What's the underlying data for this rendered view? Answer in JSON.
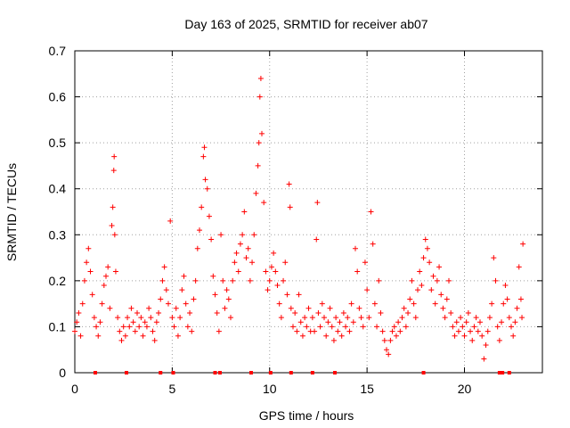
{
  "chart_data": {
    "type": "scatter",
    "title": "Day 163 of 2025, SRMTID for receiver ab07",
    "xlabel": "GPS time / hours",
    "ylabel": "SRMTID / TECUs",
    "xlim": [
      0,
      24
    ],
    "ylim": [
      0,
      0.7
    ],
    "x_ticks": [
      0,
      5,
      10,
      15,
      20
    ],
    "y_ticks": [
      0,
      0.1,
      0.2,
      0.3,
      0.4,
      0.5,
      0.6,
      0.7
    ],
    "x_tick_labels": [
      "0",
      "5",
      "10",
      "15",
      "20"
    ],
    "y_tick_labels": [
      "0",
      "0.1",
      "0.2",
      "0.3",
      "0.4",
      "0.5",
      "0.6",
      "0.7"
    ],
    "grid": true,
    "marker": "+",
    "color": "#ff0000",
    "series": [
      {
        "name": "SRMTID",
        "points": [
          [
            0.0,
            0.09
          ],
          [
            0.1,
            0.11
          ],
          [
            0.2,
            0.13
          ],
          [
            0.3,
            0.08
          ],
          [
            0.4,
            0.15
          ],
          [
            0.5,
            0.2
          ],
          [
            0.6,
            0.24
          ],
          [
            0.7,
            0.27
          ],
          [
            0.8,
            0.22
          ],
          [
            0.9,
            0.17
          ],
          [
            1.0,
            0.12
          ],
          [
            1.1,
            0.1
          ],
          [
            1.2,
            0.08
          ],
          [
            1.3,
            0.11
          ],
          [
            1.4,
            0.15
          ],
          [
            1.5,
            0.19
          ],
          [
            1.6,
            0.21
          ],
          [
            1.7,
            0.23
          ],
          [
            1.8,
            0.14
          ],
          [
            1.9,
            0.32
          ],
          [
            1.95,
            0.36
          ],
          [
            2.0,
            0.44
          ],
          [
            2.02,
            0.47
          ],
          [
            2.05,
            0.3
          ],
          [
            2.1,
            0.22
          ],
          [
            2.2,
            0.12
          ],
          [
            2.3,
            0.09
          ],
          [
            2.4,
            0.07
          ],
          [
            2.5,
            0.1
          ],
          [
            2.6,
            0.08
          ],
          [
            2.7,
            0.12
          ],
          [
            2.8,
            0.1
          ],
          [
            2.9,
            0.14
          ],
          [
            3.0,
            0.11
          ],
          [
            3.1,
            0.09
          ],
          [
            3.2,
            0.13
          ],
          [
            3.3,
            0.1
          ],
          [
            3.4,
            0.12
          ],
          [
            3.5,
            0.08
          ],
          [
            3.6,
            0.11
          ],
          [
            3.7,
            0.1
          ],
          [
            3.8,
            0.14
          ],
          [
            3.9,
            0.12
          ],
          [
            4.0,
            0.09
          ],
          [
            4.1,
            0.07
          ],
          [
            4.2,
            0.11
          ],
          [
            4.3,
            0.13
          ],
          [
            4.4,
            0.16
          ],
          [
            4.5,
            0.2
          ],
          [
            4.6,
            0.23
          ],
          [
            4.7,
            0.18
          ],
          [
            4.8,
            0.15
          ],
          [
            4.9,
            0.33
          ],
          [
            5.0,
            0.12
          ],
          [
            5.1,
            0.1
          ],
          [
            5.2,
            0.14
          ],
          [
            5.3,
            0.08
          ],
          [
            5.4,
            0.12
          ],
          [
            5.5,
            0.18
          ],
          [
            5.6,
            0.21
          ],
          [
            5.7,
            0.15
          ],
          [
            5.8,
            0.1
          ],
          [
            5.9,
            0.13
          ],
          [
            6.0,
            0.09
          ],
          [
            6.1,
            0.16
          ],
          [
            6.2,
            0.2
          ],
          [
            6.3,
            0.27
          ],
          [
            6.4,
            0.31
          ],
          [
            6.5,
            0.36
          ],
          [
            6.6,
            0.47
          ],
          [
            6.65,
            0.49
          ],
          [
            6.7,
            0.42
          ],
          [
            6.8,
            0.4
          ],
          [
            6.9,
            0.34
          ],
          [
            7.0,
            0.29
          ],
          [
            7.1,
            0.21
          ],
          [
            7.2,
            0.17
          ],
          [
            7.3,
            0.13
          ],
          [
            7.4,
            0.09
          ],
          [
            7.5,
            0.3
          ],
          [
            7.6,
            0.2
          ],
          [
            7.7,
            0.14
          ],
          [
            7.8,
            0.18
          ],
          [
            7.9,
            0.16
          ],
          [
            8.0,
            0.12
          ],
          [
            8.1,
            0.2
          ],
          [
            8.2,
            0.24
          ],
          [
            8.3,
            0.26
          ],
          [
            8.4,
            0.22
          ],
          [
            8.5,
            0.28
          ],
          [
            8.6,
            0.3
          ],
          [
            8.7,
            0.35
          ],
          [
            8.8,
            0.25
          ],
          [
            8.9,
            0.27
          ],
          [
            9.0,
            0.2
          ],
          [
            9.1,
            0.24
          ],
          [
            9.2,
            0.3
          ],
          [
            9.3,
            0.39
          ],
          [
            9.4,
            0.45
          ],
          [
            9.45,
            0.5
          ],
          [
            9.5,
            0.6
          ],
          [
            9.55,
            0.64
          ],
          [
            9.6,
            0.52
          ],
          [
            9.7,
            0.37
          ],
          [
            9.8,
            0.22
          ],
          [
            9.9,
            0.18
          ],
          [
            10.0,
            0.2
          ],
          [
            10.1,
            0.23
          ],
          [
            10.2,
            0.26
          ],
          [
            10.3,
            0.22
          ],
          [
            10.4,
            0.19
          ],
          [
            10.5,
            0.15
          ],
          [
            10.6,
            0.12
          ],
          [
            10.7,
            0.2
          ],
          [
            10.8,
            0.24
          ],
          [
            10.9,
            0.17
          ],
          [
            11.0,
            0.41
          ],
          [
            11.05,
            0.36
          ],
          [
            11.1,
            0.14
          ],
          [
            11.2,
            0.1
          ],
          [
            11.3,
            0.13
          ],
          [
            11.4,
            0.09
          ],
          [
            11.5,
            0.17
          ],
          [
            11.6,
            0.11
          ],
          [
            11.7,
            0.08
          ],
          [
            11.8,
            0.12
          ],
          [
            11.9,
            0.1
          ],
          [
            12.0,
            0.14
          ],
          [
            12.1,
            0.09
          ],
          [
            12.2,
            0.12
          ],
          [
            12.3,
            0.09
          ],
          [
            12.4,
            0.29
          ],
          [
            12.45,
            0.37
          ],
          [
            12.5,
            0.13
          ],
          [
            12.6,
            0.1
          ],
          [
            12.7,
            0.15
          ],
          [
            12.8,
            0.12
          ],
          [
            12.9,
            0.08
          ],
          [
            13.0,
            0.11
          ],
          [
            13.1,
            0.14
          ],
          [
            13.2,
            0.1
          ],
          [
            13.3,
            0.07
          ],
          [
            13.4,
            0.12
          ],
          [
            13.5,
            0.09
          ],
          [
            13.6,
            0.11
          ],
          [
            13.7,
            0.08
          ],
          [
            13.8,
            0.13
          ],
          [
            13.9,
            0.1
          ],
          [
            14.0,
            0.12
          ],
          [
            14.1,
            0.09
          ],
          [
            14.2,
            0.15
          ],
          [
            14.3,
            0.11
          ],
          [
            14.4,
            0.27
          ],
          [
            14.5,
            0.22
          ],
          [
            14.6,
            0.14
          ],
          [
            14.7,
            0.12
          ],
          [
            14.8,
            0.1
          ],
          [
            14.9,
            0.24
          ],
          [
            15.0,
            0.18
          ],
          [
            15.1,
            0.12
          ],
          [
            15.2,
            0.35
          ],
          [
            15.3,
            0.28
          ],
          [
            15.4,
            0.15
          ],
          [
            15.5,
            0.1
          ],
          [
            15.6,
            0.2
          ],
          [
            15.7,
            0.13
          ],
          [
            15.8,
            0.09
          ],
          [
            15.9,
            0.07
          ],
          [
            16.0,
            0.05
          ],
          [
            16.1,
            0.04
          ],
          [
            16.2,
            0.07
          ],
          [
            16.3,
            0.09
          ],
          [
            16.4,
            0.1
          ],
          [
            16.5,
            0.08
          ],
          [
            16.6,
            0.11
          ],
          [
            16.7,
            0.09
          ],
          [
            16.8,
            0.12
          ],
          [
            16.9,
            0.14
          ],
          [
            17.0,
            0.1
          ],
          [
            17.1,
            0.13
          ],
          [
            17.2,
            0.16
          ],
          [
            17.3,
            0.2
          ],
          [
            17.4,
            0.15
          ],
          [
            17.5,
            0.12
          ],
          [
            17.6,
            0.18
          ],
          [
            17.7,
            0.22
          ],
          [
            17.8,
            0.19
          ],
          [
            17.9,
            0.25
          ],
          [
            18.0,
            0.29
          ],
          [
            18.1,
            0.27
          ],
          [
            18.2,
            0.24
          ],
          [
            18.3,
            0.18
          ],
          [
            18.4,
            0.21
          ],
          [
            18.5,
            0.15
          ],
          [
            18.6,
            0.2
          ],
          [
            18.7,
            0.23
          ],
          [
            18.8,
            0.17
          ],
          [
            18.9,
            0.14
          ],
          [
            19.0,
            0.12
          ],
          [
            19.1,
            0.16
          ],
          [
            19.2,
            0.2
          ],
          [
            19.3,
            0.13
          ],
          [
            19.4,
            0.1
          ],
          [
            19.5,
            0.08
          ],
          [
            19.6,
            0.11
          ],
          [
            19.7,
            0.09
          ],
          [
            19.8,
            0.12
          ],
          [
            19.9,
            0.1
          ],
          [
            20.0,
            0.08
          ],
          [
            20.1,
            0.11
          ],
          [
            20.2,
            0.13
          ],
          [
            20.3,
            0.09
          ],
          [
            20.4,
            0.07
          ],
          [
            20.5,
            0.1
          ],
          [
            20.6,
            0.12
          ],
          [
            20.7,
            0.09
          ],
          [
            20.8,
            0.11
          ],
          [
            20.9,
            0.08
          ],
          [
            21.0,
            0.03
          ],
          [
            21.1,
            0.06
          ],
          [
            21.2,
            0.09
          ],
          [
            21.3,
            0.12
          ],
          [
            21.4,
            0.15
          ],
          [
            21.5,
            0.25
          ],
          [
            21.6,
            0.2
          ],
          [
            21.7,
            0.1
          ],
          [
            21.8,
            0.07
          ],
          [
            21.9,
            0.11
          ],
          [
            22.0,
            0.15
          ],
          [
            22.1,
            0.19
          ],
          [
            22.2,
            0.16
          ],
          [
            22.3,
            0.12
          ],
          [
            22.4,
            0.1
          ],
          [
            22.5,
            0.08
          ],
          [
            22.6,
            0.11
          ],
          [
            22.7,
            0.14
          ],
          [
            22.8,
            0.23
          ],
          [
            22.9,
            0.16
          ],
          [
            23.0,
            0.28
          ],
          [
            22.95,
            0.12
          ]
        ]
      }
    ],
    "baseline_markers_x": [
      1.05,
      2.65,
      4.4,
      5.05,
      7.2,
      7.45,
      9.05,
      10.05,
      11.1,
      12.2,
      13.35,
      17.9,
      21.8,
      21.95,
      22.3
    ]
  }
}
